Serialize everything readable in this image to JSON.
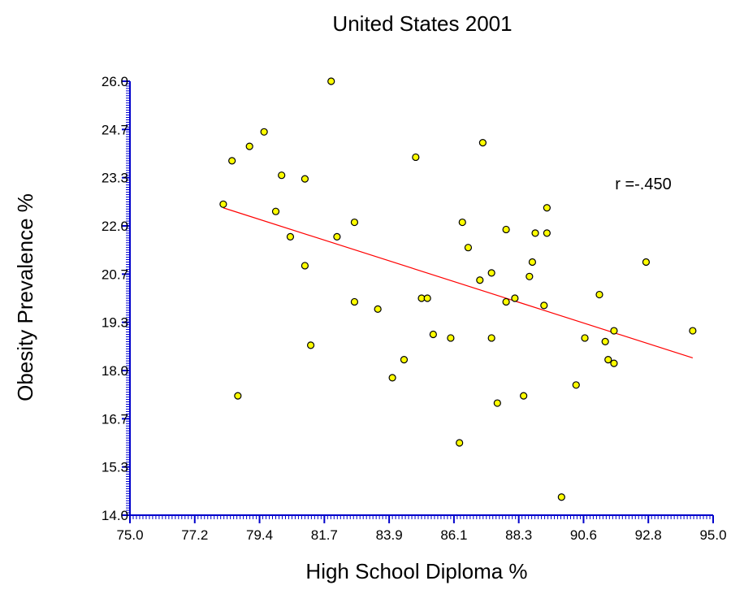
{
  "chart_data": {
    "type": "scatter",
    "title": "United States 2001",
    "xlabel": "High School Diploma %",
    "ylabel": "Obesity Prevalence %",
    "xlim": [
      75.0,
      95.0
    ],
    "ylim": [
      14.0,
      26.0
    ],
    "x_ticks": [
      "75.0",
      "77.2",
      "79.4",
      "81.7",
      "83.9",
      "86.1",
      "88.3",
      "90.6",
      "92.8",
      "95.0"
    ],
    "y_ticks": [
      "14.0",
      "15.3",
      "16.7",
      "18.0",
      "19.3",
      "20.7",
      "22.0",
      "23.3",
      "24.7",
      "26.0"
    ],
    "annotation": "r =-.450",
    "grid": false,
    "legend": "none",
    "colors": {
      "points": "#ffff00",
      "point_outline": "#000000",
      "trend": "#ff0000",
      "axis": "#0000cc"
    },
    "points": [
      {
        "x": 78.2,
        "y": 22.6
      },
      {
        "x": 78.5,
        "y": 23.8
      },
      {
        "x": 78.7,
        "y": 17.3
      },
      {
        "x": 79.1,
        "y": 24.2
      },
      {
        "x": 79.6,
        "y": 24.6
      },
      {
        "x": 80.0,
        "y": 22.4
      },
      {
        "x": 80.2,
        "y": 23.4
      },
      {
        "x": 80.5,
        "y": 21.7
      },
      {
        "x": 81.0,
        "y": 23.3
      },
      {
        "x": 81.0,
        "y": 20.9
      },
      {
        "x": 81.2,
        "y": 18.7
      },
      {
        "x": 81.9,
        "y": 26.0
      },
      {
        "x": 82.1,
        "y": 21.7
      },
      {
        "x": 82.7,
        "y": 22.1
      },
      {
        "x": 82.7,
        "y": 19.9
      },
      {
        "x": 83.5,
        "y": 19.7
      },
      {
        "x": 84.0,
        "y": 17.8
      },
      {
        "x": 84.4,
        "y": 18.3
      },
      {
        "x": 84.8,
        "y": 23.9
      },
      {
        "x": 85.0,
        "y": 20.0
      },
      {
        "x": 85.2,
        "y": 20.0
      },
      {
        "x": 85.4,
        "y": 19.0
      },
      {
        "x": 86.0,
        "y": 18.9
      },
      {
        "x": 86.3,
        "y": 16.0
      },
      {
        "x": 86.4,
        "y": 22.1
      },
      {
        "x": 86.6,
        "y": 21.4
      },
      {
        "x": 87.0,
        "y": 20.5
      },
      {
        "x": 87.1,
        "y": 24.3
      },
      {
        "x": 87.4,
        "y": 18.9
      },
      {
        "x": 87.4,
        "y": 20.7
      },
      {
        "x": 87.6,
        "y": 17.1
      },
      {
        "x": 87.9,
        "y": 21.9
      },
      {
        "x": 87.9,
        "y": 19.9
      },
      {
        "x": 88.2,
        "y": 20.0
      },
      {
        "x": 88.5,
        "y": 17.3
      },
      {
        "x": 88.7,
        "y": 20.6
      },
      {
        "x": 88.8,
        "y": 21.0
      },
      {
        "x": 88.9,
        "y": 21.8
      },
      {
        "x": 89.2,
        "y": 19.8
      },
      {
        "x": 89.3,
        "y": 22.5
      },
      {
        "x": 89.3,
        "y": 21.8
      },
      {
        "x": 89.8,
        "y": 14.5
      },
      {
        "x": 90.3,
        "y": 17.6
      },
      {
        "x": 90.6,
        "y": 18.9
      },
      {
        "x": 91.1,
        "y": 20.1
      },
      {
        "x": 91.3,
        "y": 18.8
      },
      {
        "x": 91.4,
        "y": 18.3
      },
      {
        "x": 91.6,
        "y": 19.1
      },
      {
        "x": 91.6,
        "y": 18.2
      },
      {
        "x": 92.7,
        "y": 21.0
      },
      {
        "x": 94.3,
        "y": 19.1
      }
    ],
    "trendline": {
      "x": [
        78.2,
        94.3
      ],
      "y": [
        22.5,
        18.35
      ]
    }
  }
}
